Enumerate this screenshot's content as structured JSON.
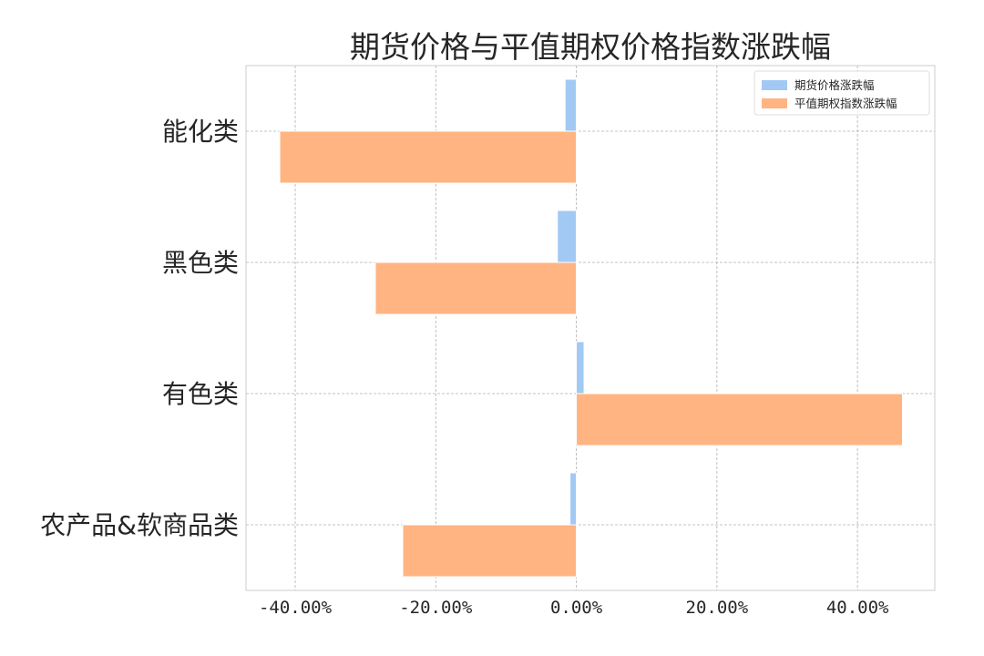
{
  "chart_data": {
    "type": "bar",
    "orientation": "horizontal",
    "title": "期货价格与平值期权价格指数涨跌幅",
    "categories": [
      "能化类",
      "黑色类",
      "有色类",
      "农产品&软商品类"
    ],
    "series": [
      {
        "name": "期货价格涨跌幅",
        "color": "#a1c9f4",
        "values": [
          -1.6,
          -2.7,
          1.1,
          -0.9
        ]
      },
      {
        "name": "平值期权指数涨跌幅",
        "color": "#ffb482",
        "values": [
          -42.2,
          -28.6,
          46.4,
          -24.7
        ]
      }
    ],
    "xlim": [
      -47,
      51
    ],
    "xticks": [
      -40,
      -20,
      0,
      20,
      40
    ],
    "xtick_labels": [
      "-40.00%",
      "-20.00%",
      "0.00%",
      "20.00%",
      "40.00%"
    ],
    "xlabel": "",
    "ylabel": "",
    "grid": true,
    "legend_position": "top-right"
  }
}
